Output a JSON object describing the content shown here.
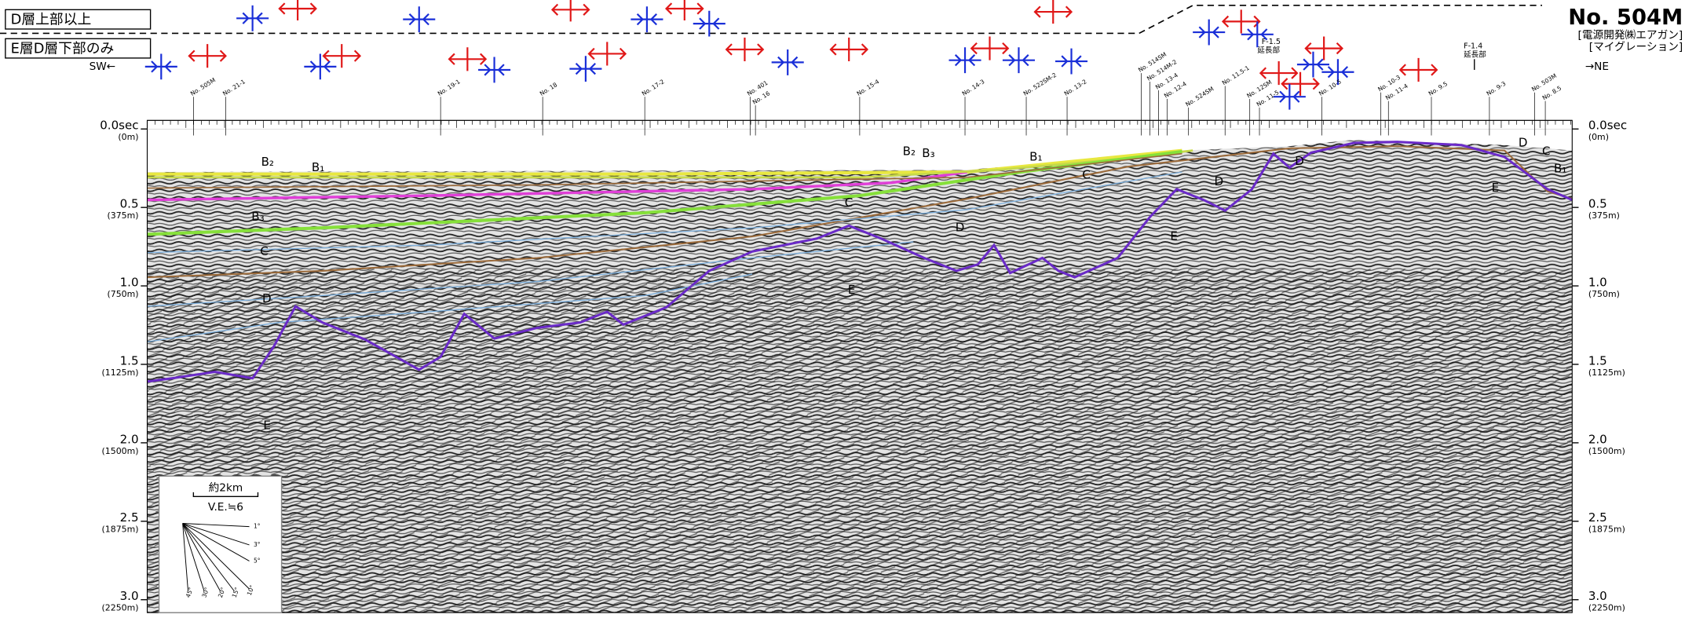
{
  "legend": [
    "D層上部以上",
    "E層D層下部のみ"
  ],
  "profile": {
    "title": "No. 504M",
    "source": "[電源開発㈱エアガン]",
    "processing": "[マイグレーション]",
    "left_direction": "SW←",
    "right_direction": "→NE"
  },
  "time_axis": [
    {
      "value": 0,
      "label": "0.0sec",
      "depth": "(0m)"
    },
    {
      "value": 0.5,
      "label": "0.5",
      "depth": "(375m)"
    },
    {
      "value": 1,
      "label": "1.0",
      "depth": "(750m)"
    },
    {
      "value": 1.5,
      "label": "1.5",
      "depth": "(1125m)"
    },
    {
      "value": 2,
      "label": "2.0",
      "depth": "(1500m)"
    },
    {
      "value": 2.5,
      "label": "2.5",
      "depth": "(1875m)"
    },
    {
      "value": 3,
      "label": "3.0",
      "depth": "(2250m)"
    }
  ],
  "crossing_lines": [
    "No. 505M",
    "No. 21-1",
    "No. 19-1",
    "No. 18",
    "No. 17-2",
    "No. 401",
    "No. 16",
    "No. 15-4",
    "No. 14-3",
    "No. 522SM-2",
    "No. 13-2",
    "No. 514SM",
    "No. 514M-2",
    "No. 13-4",
    "No. 12-4",
    "No. 524SM",
    "No. 11.5-1",
    "No. 12SM",
    "No. 11-5",
    "No. 10-5",
    "No. 10-3",
    "No. 11-4",
    "No. 9.5",
    "No. 9-3",
    "No. 503M",
    "No. 8.5"
  ],
  "fault_extensions": [
    {
      "name": "F-1.5",
      "note": "延長部"
    },
    {
      "name": "F-1.4",
      "note": "延長部"
    }
  ],
  "horizon_labels": [
    "B₂",
    "B₁",
    "B₃",
    "C",
    "D",
    "E",
    "B₂",
    "B₃",
    "B₁",
    "C",
    "C",
    "D",
    "E",
    "D",
    "E",
    "D",
    "C",
    "B₁",
    "E",
    "D"
  ],
  "scale_bar": {
    "distance": "約2km",
    "exaggeration": "V.E.≒6",
    "angles": [
      "1°",
      "3°",
      "5°",
      "45°",
      "30°",
      "20°",
      "15°",
      "10°"
    ]
  }
}
